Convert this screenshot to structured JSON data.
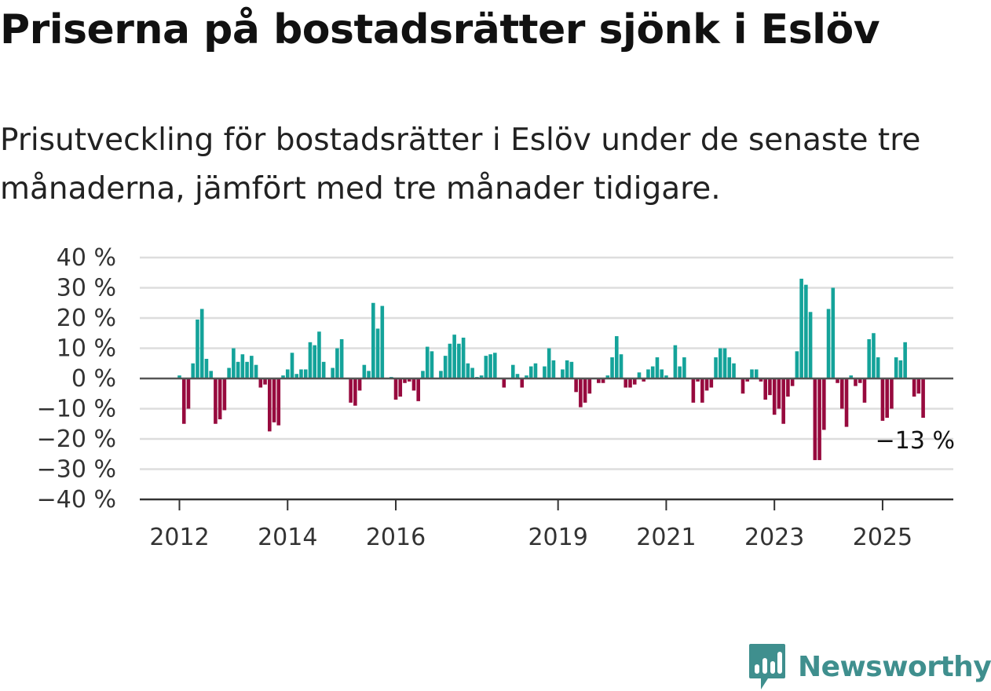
{
  "title": "Priserna på bostadsrätter sjönk i Eslöv",
  "subtitle": "Prisutveckling för bostadsrätter i Eslöv under de senaste tre månaderna, jämfört med tre månader tidigare.",
  "brand": {
    "name": "Newsworthy",
    "icon": "newsworthy-logo-icon",
    "color": "#3f8f8e"
  },
  "colors": {
    "positive": "#14a39a",
    "negative": "#970a3e",
    "grid": "#dddddd",
    "axis": "#555555"
  },
  "chart_data": {
    "type": "bar",
    "x_start": "2012-01",
    "x_end": "2025-08",
    "ylim": [
      -40,
      40
    ],
    "yticks": [
      40,
      30,
      20,
      10,
      0,
      -10,
      -20,
      -30,
      -40
    ],
    "ytick_labels": [
      "40 %",
      "30 %",
      "20 %",
      "10 %",
      "0 %",
      "−10 %",
      "−20 %",
      "−30 %",
      "−40 %"
    ],
    "xtick_labels": [
      "2012",
      "2014",
      "2016",
      "2019",
      "2021",
      "2023",
      "2025"
    ],
    "xtick_months": [
      "2012-01",
      "2014-01",
      "2016-01",
      "2019-01",
      "2021-01",
      "2023-01",
      "2025-01"
    ],
    "end_label": "−13 %",
    "grid": true,
    "values": [
      1,
      -15,
      -10,
      5,
      19.5,
      23,
      6.5,
      2.5,
      -15,
      -13.5,
      -10.5,
      3.5,
      10,
      5.5,
      8,
      5.5,
      7.5,
      4.5,
      -3,
      -2,
      -17.5,
      -14.5,
      -15.5,
      1,
      3,
      8.5,
      1.5,
      3,
      3,
      12,
      11,
      15.5,
      5.5,
      0,
      3.5,
      10,
      13,
      0,
      -8,
      -9,
      -4,
      4.5,
      2.5,
      25,
      16.5,
      24,
      0,
      0.5,
      -7,
      -6,
      -1.5,
      -1,
      -4,
      -7.5,
      2.5,
      10.5,
      9,
      0,
      2.5,
      7.5,
      11.5,
      14.5,
      11.5,
      13.5,
      5,
      3.5,
      0.5,
      1,
      7.5,
      8,
      8.5,
      0,
      -3,
      0,
      4.5,
      1.5,
      -3,
      1,
      4,
      5,
      0,
      4,
      10,
      6,
      0,
      3,
      6,
      5.5,
      -4.5,
      -9.5,
      -8,
      -5,
      0,
      -1.5,
      -1.5,
      1,
      7,
      14,
      8,
      -3,
      -3,
      -2,
      2,
      -1,
      3,
      4,
      7,
      3,
      1,
      0,
      11,
      4,
      7,
      0,
      -8,
      -1,
      -8,
      -4,
      -3,
      7,
      10,
      10,
      7,
      5,
      0,
      -5,
      -1,
      3,
      3,
      -1,
      -7,
      -5.5,
      -12,
      -10,
      -15,
      -6,
      -2.5,
      9,
      33,
      31,
      22,
      -27,
      -27,
      -17,
      23,
      30,
      -1.5,
      -10,
      -16,
      1,
      -2.5,
      -1.5,
      -8,
      13,
      15,
      7,
      -14,
      -13,
      -10,
      7,
      6,
      12,
      0,
      -6,
      -5,
      -13
    ]
  }
}
